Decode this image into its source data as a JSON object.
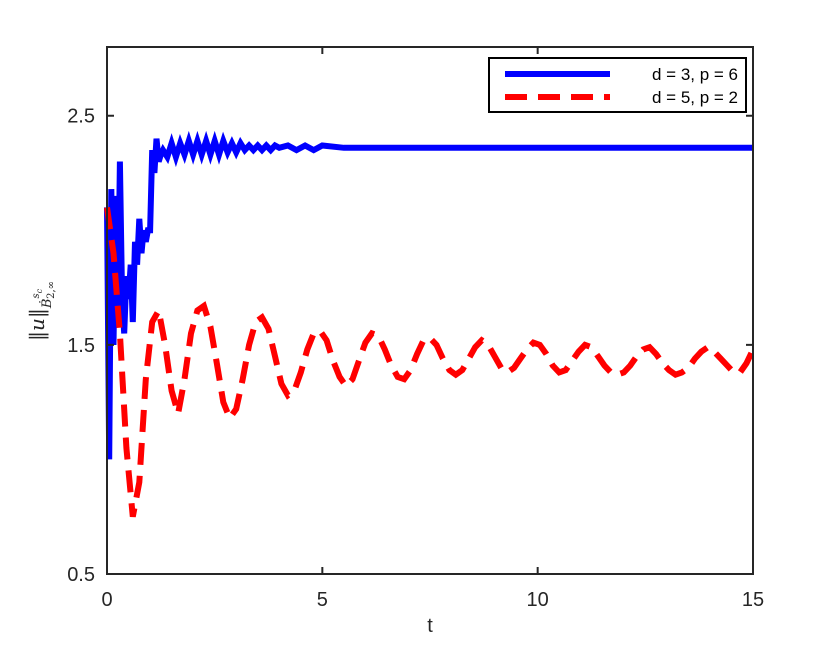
{
  "chart_data": {
    "type": "line",
    "title": "",
    "xlabel": "t",
    "ylabel": {
      "norm_left": "‖",
      "var": "u",
      "norm_right": "‖",
      "space": "Ḃ",
      "superscript": "s",
      "superscript_sub": "c",
      "subscript": "2,∞"
    },
    "xlim": [
      0,
      15
    ],
    "ylim": [
      0.5,
      2.8
    ],
    "xticks": [
      0,
      5,
      10,
      15
    ],
    "xtick_labels": [
      "0",
      "5",
      "10",
      "15"
    ],
    "yticks": [
      0.5,
      1.5,
      2.5
    ],
    "ytick_labels": [
      "0.5",
      "1.5",
      "2.5"
    ],
    "grid": false,
    "legend_position": "top-right",
    "series": [
      {
        "name": "d = 3, p = 6",
        "color": "#0000ff",
        "style": "solid",
        "x": [
          0,
          0.05,
          0.1,
          0.15,
          0.2,
          0.25,
          0.3,
          0.35,
          0.4,
          0.45,
          0.5,
          0.55,
          0.6,
          0.65,
          0.7,
          0.75,
          0.8,
          0.85,
          0.9,
          0.95,
          1.0,
          1.05,
          1.1,
          1.15,
          1.2,
          1.25,
          1.3,
          1.4,
          1.5,
          1.6,
          1.7,
          1.8,
          1.9,
          2.0,
          2.1,
          2.2,
          2.3,
          2.4,
          2.5,
          2.6,
          2.7,
          2.8,
          2.9,
          3.0,
          3.1,
          3.2,
          3.3,
          3.4,
          3.5,
          3.6,
          3.7,
          3.8,
          3.9,
          4.0,
          4.2,
          4.4,
          4.6,
          4.8,
          5.0,
          5.5,
          6.0,
          6.5,
          7.0,
          7.5,
          8.0,
          8.5,
          9.0,
          9.5,
          10.0,
          10.5,
          11.0,
          11.5,
          12.0,
          12.5,
          13.0,
          13.5,
          14.0,
          14.5,
          15.0
        ],
        "values": [
          2.1,
          1.0,
          2.18,
          1.5,
          2.15,
          1.6,
          2.3,
          1.7,
          1.55,
          1.8,
          1.7,
          1.85,
          1.6,
          1.95,
          1.85,
          2.05,
          1.9,
          2.0,
          1.95,
          2.0,
          2.0,
          2.35,
          2.25,
          2.4,
          2.3,
          2.33,
          2.35,
          2.32,
          2.38,
          2.32,
          2.38,
          2.33,
          2.39,
          2.33,
          2.39,
          2.33,
          2.39,
          2.33,
          2.39,
          2.33,
          2.39,
          2.34,
          2.38,
          2.34,
          2.38,
          2.35,
          2.37,
          2.35,
          2.37,
          2.35,
          2.37,
          2.35,
          2.37,
          2.36,
          2.37,
          2.35,
          2.37,
          2.35,
          2.37,
          2.36,
          2.36,
          2.36,
          2.36,
          2.36,
          2.36,
          2.36,
          2.36,
          2.36,
          2.36,
          2.36,
          2.36,
          2.36,
          2.36,
          2.36,
          2.36,
          2.36,
          2.36,
          2.36,
          2.36
        ]
      },
      {
        "name": "d = 5, p = 2",
        "color": "#ff0000",
        "style": "dashed",
        "x": [
          0,
          0.15,
          0.3,
          0.45,
          0.6,
          0.75,
          0.9,
          1.05,
          1.2,
          1.35,
          1.5,
          1.65,
          1.8,
          1.95,
          2.1,
          2.25,
          2.4,
          2.55,
          2.7,
          2.85,
          3.0,
          3.15,
          3.3,
          3.45,
          3.6,
          3.75,
          3.9,
          4.05,
          4.2,
          4.35,
          4.5,
          4.65,
          4.8,
          4.95,
          5.1,
          5.25,
          5.4,
          5.55,
          5.7,
          5.85,
          6.0,
          6.15,
          6.3,
          6.45,
          6.6,
          6.75,
          6.9,
          7.05,
          7.2,
          7.35,
          7.5,
          7.65,
          7.8,
          7.95,
          8.1,
          8.25,
          8.4,
          8.55,
          8.7,
          8.85,
          9.0,
          9.15,
          9.3,
          9.45,
          9.6,
          9.75,
          9.9,
          10.05,
          10.2,
          10.35,
          10.5,
          10.65,
          10.8,
          10.95,
          11.1,
          11.25,
          11.4,
          11.55,
          11.7,
          11.85,
          12.0,
          12.15,
          12.3,
          12.45,
          12.6,
          12.75,
          12.9,
          13.05,
          13.2,
          13.35,
          13.5,
          13.65,
          13.8,
          13.95,
          14.1,
          14.25,
          14.4,
          14.55,
          14.7,
          14.85,
          15.0
        ],
        "values": [
          2.1,
          1.9,
          1.55,
          1.05,
          0.75,
          0.9,
          1.35,
          1.6,
          1.65,
          1.5,
          1.3,
          1.2,
          1.35,
          1.55,
          1.65,
          1.67,
          1.58,
          1.42,
          1.25,
          1.18,
          1.22,
          1.35,
          1.5,
          1.6,
          1.62,
          1.57,
          1.45,
          1.33,
          1.28,
          1.3,
          1.38,
          1.48,
          1.55,
          1.56,
          1.52,
          1.43,
          1.36,
          1.32,
          1.35,
          1.43,
          1.51,
          1.55,
          1.54,
          1.48,
          1.41,
          1.36,
          1.35,
          1.39,
          1.46,
          1.52,
          1.53,
          1.5,
          1.44,
          1.39,
          1.37,
          1.39,
          1.44,
          1.49,
          1.52,
          1.5,
          1.45,
          1.4,
          1.38,
          1.4,
          1.44,
          1.48,
          1.51,
          1.5,
          1.46,
          1.41,
          1.38,
          1.39,
          1.43,
          1.47,
          1.5,
          1.49,
          1.45,
          1.41,
          1.38,
          1.37,
          1.38,
          1.41,
          1.45,
          1.48,
          1.49,
          1.46,
          1.42,
          1.39,
          1.37,
          1.38,
          1.4,
          1.44,
          1.47,
          1.49,
          1.47,
          1.44,
          1.41,
          1.38,
          1.38,
          1.42,
          1.48
        ]
      }
    ]
  }
}
